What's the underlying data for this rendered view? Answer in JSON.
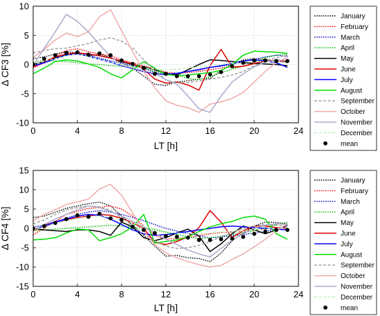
{
  "chart_data": [
    {
      "type": "line",
      "ylabel": "Δ CF3 [%]",
      "xlabel": "LT [h]",
      "xlim": [
        0,
        24
      ],
      "ylim": [
        -10,
        10
      ],
      "xticks": [
        "0",
        "4",
        "8",
        "12",
        "16",
        "20",
        "24"
      ],
      "yticks": [
        "10",
        "5",
        "0",
        "-5",
        "-10"
      ],
      "grid": true,
      "legend_position": "right",
      "x": [
        0,
        1,
        2,
        3,
        4,
        5,
        6,
        7,
        8,
        9,
        10,
        11,
        12,
        13,
        14,
        15,
        16,
        17,
        18,
        19,
        20,
        21,
        22,
        23
      ],
      "series": [
        {
          "name": "January",
          "color": "#000000",
          "style": "dotted",
          "values": [
            1,
            1.3,
            1.8,
            2.2,
            2,
            1.4,
            1.8,
            1.2,
            0.3,
            -0.6,
            -2,
            -3.4,
            -3.6,
            -3,
            -2.8,
            -2.5,
            -2.4,
            -1,
            0,
            0.8,
            1,
            0.8,
            0.6,
            0.4
          ]
        },
        {
          "name": "February",
          "color": "#ff0000",
          "style": "dotted",
          "values": [
            -0.6,
            0.3,
            1.4,
            2.4,
            2.7,
            2.2,
            1.8,
            1.5,
            0.8,
            0.3,
            -0.2,
            -0.8,
            -1.3,
            -1.5,
            -1.4,
            -1.2,
            -0.9,
            -0.6,
            -0.4,
            -0.3,
            0.1,
            0.6,
            0.8,
            0.7
          ]
        },
        {
          "name": "March",
          "color": "#0000cc",
          "style": "dotted",
          "values": [
            -0.4,
            0.3,
            1.2,
            1.8,
            2,
            1.6,
            1.1,
            0.6,
            0.2,
            -0.2,
            -0.6,
            -1.4,
            -1.8,
            -1.6,
            -1.2,
            -0.8,
            -0.5,
            -0.3,
            0,
            0.5,
            0.9,
            1.3,
            1.6,
            1.4
          ]
        },
        {
          "name": "April",
          "color": "#00bb00",
          "style": "dotted",
          "values": [
            0.4,
            0.7,
            0.6,
            0.5,
            0.3,
            0.1,
            0,
            -0.2,
            -0.3,
            -0.4,
            -0.6,
            -1.2,
            -1.6,
            -1.8,
            -2.4,
            -2.6,
            -2.1,
            -1.4,
            -0.8,
            -0.3,
            0.4,
            1.2,
            1.6,
            1.8
          ]
        },
        {
          "name": "May",
          "color": "#000000",
          "style": "solid",
          "values": [
            0,
            0.5,
            1.2,
            1.8,
            2,
            1.8,
            1.5,
            1.1,
            0.5,
            0,
            -0.4,
            -0.9,
            -1.5,
            -1.8,
            -0.9,
            0,
            0.8,
            0.7,
            0.5,
            0.3,
            0.2,
            0.1,
            0,
            -0.2
          ]
        },
        {
          "name": "June",
          "color": "#dd0000",
          "style": "solid",
          "values": [
            -0.4,
            0.5,
            1.3,
            1.8,
            2,
            1.8,
            1.5,
            1.1,
            0.6,
            0.1,
            -0.8,
            -2.5,
            -3.2,
            -3,
            -3.5,
            -4.4,
            -0.2,
            2.6,
            -0.5,
            -0.3,
            0.2,
            0.6,
            0.7,
            0.5
          ]
        },
        {
          "name": "July",
          "color": "#0000ff",
          "style": "solid",
          "values": [
            -0.2,
            0.3,
            1,
            1.6,
            1.8,
            1.4,
            0.9,
            0.4,
            -0.2,
            -0.7,
            -1.2,
            -1.6,
            -1.7,
            -1.5,
            -1.2,
            -0.9,
            -0.5,
            -0.2,
            0.2,
            0.6,
            0.8,
            0.6,
            0.3,
            -0.5
          ]
        },
        {
          "name": "August",
          "color": "#00dd00",
          "style": "solid",
          "values": [
            -1.6,
            -0.6,
            0.5,
            0.8,
            0.6,
            0.1,
            -0.5,
            -1.6,
            -2.3,
            -0.9,
            0.5,
            -0.6,
            -1.7,
            -1.9,
            -1.8,
            -1.6,
            -1.4,
            -1,
            0,
            1.6,
            2.3,
            2.2,
            2.1,
            1.9
          ]
        },
        {
          "name": "September",
          "color": "#999999",
          "style": "dashed",
          "values": [
            2,
            2.4,
            2.7,
            2.8,
            3.2,
            3.6,
            4.2,
            4.6,
            4,
            2.8,
            0.8,
            -1,
            -2.6,
            -3.2,
            -3.1,
            -2.8,
            -2.5,
            -2.2,
            -1.8,
            -1.2,
            -0.2,
            0.6,
            1.2,
            1.6
          ]
        },
        {
          "name": "October",
          "color": "#f0aaaa",
          "style": "solid",
          "values": [
            1.2,
            2.6,
            4.2,
            5.4,
            4.8,
            5.6,
            8.2,
            9.4,
            5.8,
            2.2,
            -1.2,
            -4,
            -6.2,
            -7,
            -7.4,
            -8.2,
            -6.8,
            -6.4,
            -5.8,
            -4.8,
            -3,
            -1.2,
            0.4,
            1.2
          ]
        },
        {
          "name": "November",
          "color": "#aaaacc",
          "style": "solid",
          "values": [
            -0.2,
            2.8,
            5.6,
            8.6,
            7.4,
            5.6,
            3.4,
            1.4,
            -0.1,
            -0.6,
            -1.1,
            -1.5,
            -2.6,
            -3.4,
            -5.4,
            -7.6,
            -8.2,
            -5.4,
            -3,
            -1.6,
            -0.4,
            0.4,
            0.8,
            0.6
          ]
        },
        {
          "name": "December",
          "color": "#bbeebb",
          "style": "dashed",
          "values": [
            -0.2,
            0.6,
            1,
            1.5,
            1.8,
            1.4,
            0.9,
            0.4,
            -0.1,
            -0.4,
            -0.6,
            -0.8,
            -0.9,
            -0.8,
            -0.6,
            -0.4,
            -0.2,
            0,
            0.2,
            0.4,
            0.5,
            0.6,
            0.4,
            0.2
          ]
        },
        {
          "name": "mean",
          "color": "#000000",
          "style": "markers",
          "values": [
            0,
            1,
            1.6,
            2,
            2.1,
            1.7,
            1.9,
            1.6,
            0.7,
            0.1,
            -0.6,
            -1.6,
            -1.6,
            -2,
            -2,
            -2,
            -1.7,
            -1.3,
            -0.3,
            0.3,
            0.7,
            0.7,
            0.6,
            0.6
          ]
        }
      ]
    },
    {
      "type": "line",
      "ylabel": "Δ CF4 [%]",
      "xlabel": "LT [h]",
      "xlim": [
        0,
        24
      ],
      "ylim": [
        -15,
        15
      ],
      "xticks": [
        "0",
        "4",
        "8",
        "12",
        "16",
        "20",
        "24"
      ],
      "yticks": [
        "15",
        "10",
        "5",
        "0",
        "-5",
        "-10",
        "-15"
      ],
      "grid": true,
      "legend_position": "right",
      "x": [
        0,
        1,
        2,
        3,
        4,
        5,
        6,
        7,
        8,
        9,
        10,
        11,
        12,
        13,
        14,
        15,
        16,
        17,
        18,
        19,
        20,
        21,
        22,
        23
      ],
      "series": [
        {
          "name": "January",
          "color": "#000000",
          "style": "dotted",
          "values": [
            2.8,
            3.2,
            4.2,
            5.2,
            5.8,
            6.4,
            6.8,
            5.8,
            3.2,
            0.8,
            -1.8,
            -4.6,
            -7.2,
            -7,
            -7.6,
            -7.8,
            -8.6,
            -6.4,
            -3.2,
            -1.2,
            0.6,
            1.6,
            1.5,
            1.2
          ]
        },
        {
          "name": "February",
          "color": "#ff0000",
          "style": "dotted",
          "values": [
            -1.6,
            0,
            1.8,
            3.6,
            4.4,
            5.2,
            5.4,
            5.8,
            5,
            3.2,
            0.6,
            -1.8,
            -2.8,
            -2.6,
            -2.4,
            -1.9,
            -1.4,
            -1.1,
            -0.9,
            -0.6,
            -0.4,
            -0.2,
            0,
            0.4
          ]
        },
        {
          "name": "March",
          "color": "#0000cc",
          "style": "dotted",
          "values": [
            0.4,
            0.8,
            1.8,
            2.6,
            3.6,
            4.2,
            4.6,
            4.2,
            3.6,
            2.8,
            2,
            1,
            0,
            -0.7,
            -1.3,
            -1.9,
            -2.5,
            -2.2,
            -1.9,
            -1.6,
            -1.2,
            -0.8,
            -0.2,
            0.4
          ]
        },
        {
          "name": "April",
          "color": "#00bb00",
          "style": "dotted",
          "values": [
            -0.6,
            -0.4,
            -0.2,
            0,
            0.2,
            0.4,
            0.6,
            0.8,
            0.6,
            0.3,
            0,
            -0.4,
            -1,
            -1.6,
            -2.2,
            -2.6,
            -2.4,
            -2,
            -1.6,
            -1.2,
            -0.6,
            0.2,
            1,
            1.6
          ]
        },
        {
          "name": "May",
          "color": "#000000",
          "style": "solid",
          "values": [
            0,
            -0.4,
            -0.6,
            -0.8,
            -0.4,
            -0.4,
            -0.8,
            -1.8,
            1.6,
            0.4,
            -2.4,
            -3.2,
            -2.4,
            -1.2,
            -0.2,
            -2,
            -6,
            -4,
            -1.4,
            0.6,
            -0.4,
            -1.4,
            -0.4,
            0.8
          ]
        },
        {
          "name": "June",
          "color": "#dd0000",
          "style": "solid",
          "values": [
            -0.6,
            0.8,
            1.6,
            2.2,
            2.8,
            3.2,
            3.6,
            3.4,
            2.6,
            1.4,
            0,
            -3.6,
            -4.2,
            -3.4,
            -2.2,
            0.2,
            4.6,
            1.6,
            -2.4,
            -0.6,
            0.6,
            0.6,
            0.2,
            0
          ]
        },
        {
          "name": "July",
          "color": "#0000ff",
          "style": "solid",
          "values": [
            -0.2,
            0.6,
            1.6,
            2.4,
            3.2,
            3.6,
            3.4,
            2.4,
            1,
            -0.4,
            -1.4,
            -1.8,
            -1.6,
            -1.2,
            -0.8,
            -0.4,
            0,
            0.4,
            0.6,
            0.4,
            0.2,
            0,
            -0.2,
            -0.4
          ]
        },
        {
          "name": "August",
          "color": "#00dd00",
          "style": "solid",
          "values": [
            -3,
            -2.8,
            -2.4,
            -1.2,
            -0.2,
            -0.4,
            -3.2,
            -2.4,
            -1.4,
            0.4,
            3.6,
            -3.8,
            -3.4,
            -3,
            -2.2,
            -0.8,
            0.4,
            1.2,
            1.8,
            2.8,
            3.2,
            2.4,
            -1.4,
            -2.8
          ]
        },
        {
          "name": "September",
          "color": "#999999",
          "style": "dashed",
          "values": [
            1.2,
            2.2,
            3.6,
            4.8,
            5.4,
            5.8,
            5.6,
            4.6,
            2.8,
            0.6,
            -1.6,
            -3.2,
            -4.6,
            -5.2,
            -5,
            -4.4,
            -3.4,
            -2.2,
            -1,
            0,
            0.6,
            1,
            0.8,
            0.6
          ]
        },
        {
          "name": "October",
          "color": "#f0aaaa",
          "style": "solid",
          "values": [
            2,
            3.6,
            4.8,
            6.2,
            6.8,
            7.6,
            10.2,
            11.4,
            8.6,
            4,
            -0.6,
            -4.2,
            -6.4,
            -7.6,
            -8.6,
            -9.4,
            -10,
            -9.6,
            -8,
            -6.6,
            -4.8,
            -2.8,
            -0.6,
            1.2
          ]
        },
        {
          "name": "November",
          "color": "#aaaacc",
          "style": "solid",
          "values": [
            -0.4,
            1,
            2.4,
            3.6,
            4.8,
            5.8,
            5.4,
            4.4,
            3.2,
            1.8,
            0.4,
            -1.2,
            -2.8,
            -4.2,
            -5.6,
            -6.6,
            -7.4,
            -5.2,
            -3,
            -1.4,
            0,
            0.8,
            1.2,
            1
          ]
        },
        {
          "name": "December",
          "color": "#bbeebb",
          "style": "dashed",
          "values": [
            -0.4,
            0.4,
            1.2,
            2,
            2.6,
            3,
            3.2,
            2.8,
            2.2,
            1.4,
            0.6,
            -0.2,
            -0.8,
            -1.2,
            -1.4,
            -1.4,
            -1.2,
            -1,
            -0.8,
            -0.6,
            -0.4,
            -0.2,
            0,
            0.2
          ]
        },
        {
          "name": "mean",
          "color": "#000000",
          "style": "markers",
          "values": [
            0,
            0.6,
            1.4,
            2.4,
            3.4,
            3,
            3.8,
            2.6,
            2.2,
            0.4,
            -0.4,
            -1.2,
            -2,
            -2.2,
            -2.4,
            -3,
            -3,
            -2.8,
            -2.6,
            -2.2,
            -1.4,
            -0.8,
            -0.4,
            -0.4
          ]
        }
      ]
    }
  ]
}
